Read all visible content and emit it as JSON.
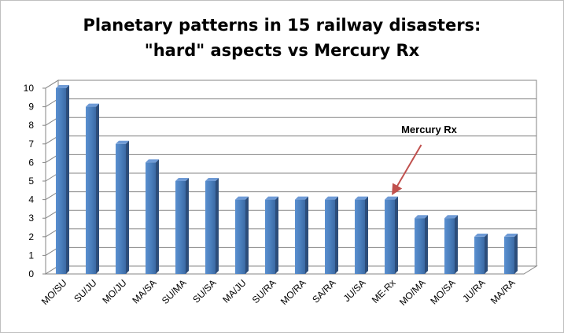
{
  "chart_data": {
    "type": "bar",
    "title_lines": [
      "Planetary patterns in 15 railway disasters:",
      "\"hard\" aspects vs Mercury Rx"
    ],
    "categories": [
      "MO/SU",
      "SU/JU",
      "MO/JU",
      "MA/SA",
      "SU/MA",
      "SU/SA",
      "MA/JU",
      "SU/RA",
      "MO/RA",
      "SA/RA",
      "JU/SA",
      "ME-Rx",
      "MO/MA",
      "MO/SA",
      "JU/RA",
      "MA/RA"
    ],
    "values": [
      10,
      9,
      7,
      6,
      5,
      5,
      4,
      4,
      4,
      4,
      4,
      4,
      3,
      3,
      2,
      2
    ],
    "ylim": [
      0,
      10
    ],
    "yticks": [
      0,
      1,
      2,
      3,
      4,
      5,
      6,
      7,
      8,
      9,
      10
    ],
    "xlabel": "",
    "ylabel": "",
    "grid": true,
    "legend": "none",
    "bar_color": "#4a7ebb",
    "annotation": {
      "text": "Mercury Rx",
      "target": "ME-Rx",
      "arrow_color": "#c0504d"
    }
  }
}
